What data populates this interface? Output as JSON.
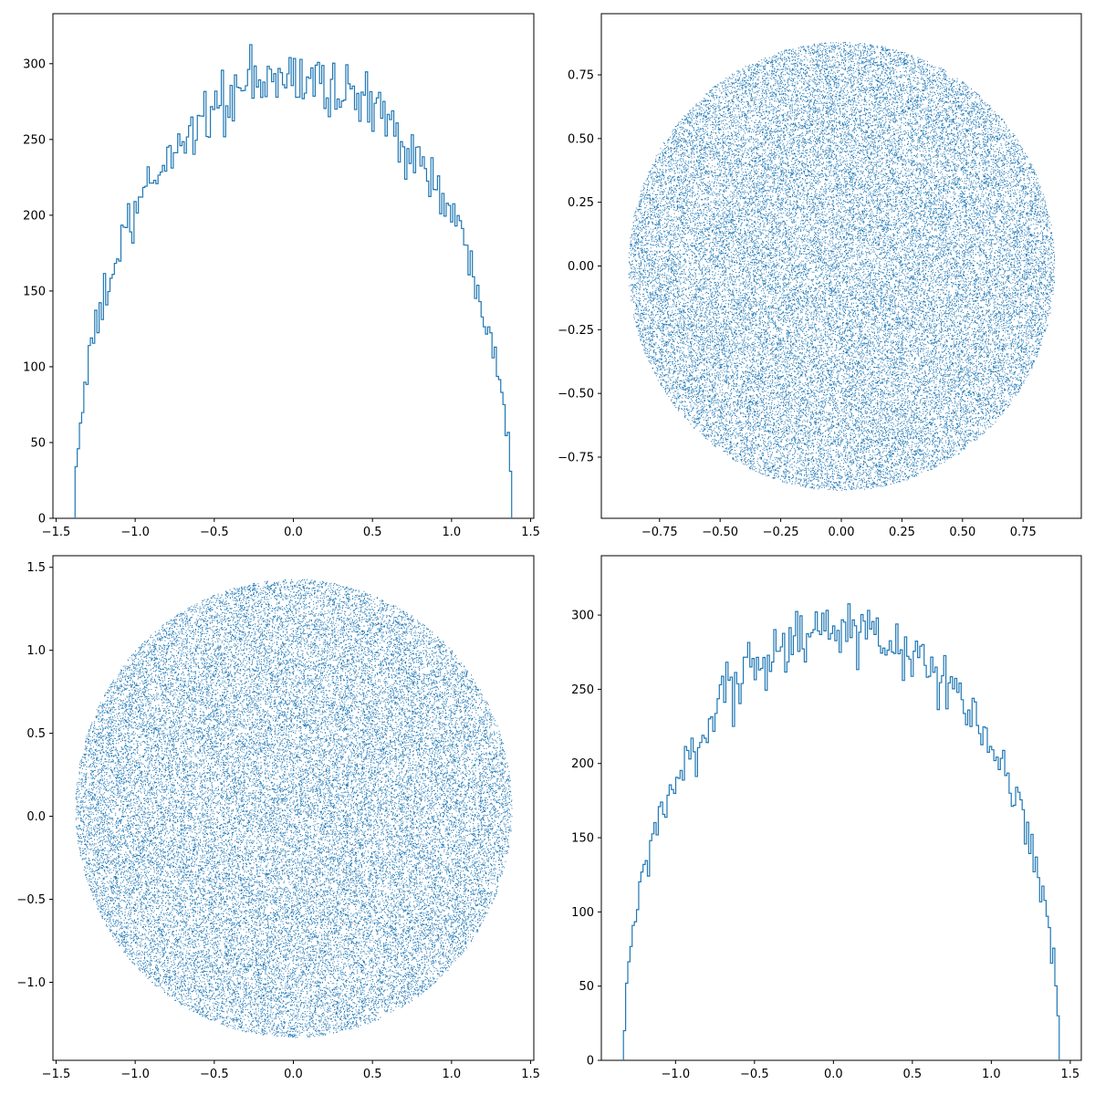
{
  "figure": {
    "background": "#ffffff",
    "series_color": "#1f77b4"
  },
  "chart_data": [
    {
      "type": "histogram",
      "histtype": "step",
      "title": "",
      "xlabel": "",
      "ylabel": "",
      "xlim": [
        -1.52,
        1.52
      ],
      "ylim": [
        0,
        333
      ],
      "xticks": [
        -1.5,
        -1.0,
        -0.5,
        0.0,
        0.5,
        1.0,
        1.5
      ],
      "xtick_labels": [
        "−1.5",
        "−1.0",
        "−0.5",
        "0.0",
        "0.5",
        "1.0",
        "1.5"
      ],
      "yticks": [
        0,
        50,
        100,
        150,
        200,
        250,
        300
      ],
      "ytick_labels": [
        "0",
        "50",
        "100",
        "150",
        "200",
        "250",
        "300"
      ],
      "grid": false,
      "bin_range": [
        -1.38,
        1.38
      ],
      "bin_count": 200,
      "envelope_peak": 290,
      "envelope_peak_x": -0.05,
      "noise_amplitude": 22,
      "x_noted": [
        -1.37,
        -1.2,
        -1.0,
        -0.8,
        -0.5,
        -0.3,
        -0.1,
        0.0,
        0.2,
        0.4,
        0.6,
        0.8,
        1.0,
        1.2,
        1.37
      ],
      "y_noted": [
        34,
        150,
        215,
        255,
        265,
        290,
        320,
        290,
        285,
        290,
        275,
        245,
        205,
        140,
        31
      ],
      "color": "#1f77b4"
    },
    {
      "type": "scatter",
      "marker": "pixel",
      "title": "",
      "xlabel": "",
      "ylabel": "",
      "xlim": [
        -0.99,
        0.99
      ],
      "ylim": [
        -0.99,
        0.99
      ],
      "xticks": [
        -0.75,
        -0.5,
        -0.25,
        0.0,
        0.25,
        0.5,
        0.75
      ],
      "xtick_labels": [
        "−0.75",
        "−0.50",
        "−0.25",
        "0.00",
        "0.25",
        "0.50",
        "0.75"
      ],
      "yticks": [
        -0.75,
        -0.5,
        -0.25,
        0.0,
        0.25,
        0.5,
        0.75
      ],
      "ytick_labels": [
        "−0.75",
        "−0.50",
        "−0.25",
        "0.00",
        "0.25",
        "0.50",
        "0.75"
      ],
      "grid": false,
      "distribution": "uniform disk",
      "center": [
        0.0,
        0.0
      ],
      "radius": 0.88,
      "point_count": 40000,
      "color": "#1f77b4"
    },
    {
      "type": "scatter",
      "marker": "pixel",
      "title": "",
      "xlabel": "",
      "ylabel": "",
      "xlim": [
        -1.52,
        1.52
      ],
      "ylim": [
        -1.47,
        1.57
      ],
      "xticks": [
        -1.5,
        -1.0,
        -0.5,
        0.0,
        0.5,
        1.0,
        1.5
      ],
      "xtick_labels": [
        "−1.5",
        "−1.0",
        "−0.5",
        "0.0",
        "0.5",
        "1.0",
        "1.5"
      ],
      "yticks": [
        -1.0,
        -0.5,
        0.0,
        0.5,
        1.0,
        1.5
      ],
      "ytick_labels": [
        "−1.0",
        "−0.5",
        "0.0",
        "0.5",
        "1.0",
        "1.5"
      ],
      "grid": false,
      "distribution": "uniform disk",
      "center": [
        0.0,
        0.05
      ],
      "radius": 1.38,
      "point_count": 40000,
      "color": "#1f77b4"
    },
    {
      "type": "histogram",
      "histtype": "step",
      "title": "",
      "xlabel": "",
      "ylabel": "",
      "xlim": [
        -1.47,
        1.57
      ],
      "ylim": [
        0,
        340
      ],
      "xticks": [
        -1.0,
        -0.5,
        0.0,
        0.5,
        1.0,
        1.5
      ],
      "xtick_labels": [
        "−1.0",
        "−0.5",
        "0.0",
        "0.5",
        "1.0",
        "1.5"
      ],
      "yticks": [
        0,
        50,
        100,
        150,
        200,
        250,
        300
      ],
      "ytick_labels": [
        "0",
        "50",
        "100",
        "150",
        "200",
        "250",
        "300"
      ],
      "grid": false,
      "bin_range": [
        -1.33,
        1.43
      ],
      "bin_count": 200,
      "envelope_peak": 290,
      "envelope_peak_x": 0.05,
      "noise_amplitude": 22,
      "x_noted": [
        -1.32,
        -1.2,
        -1.0,
        -0.8,
        -0.5,
        -0.3,
        0.0,
        0.05,
        0.3,
        0.5,
        0.8,
        1.0,
        1.2,
        1.42
      ],
      "y_noted": [
        20,
        105,
        200,
        250,
        290,
        295,
        325,
        330,
        300,
        280,
        250,
        210,
        140,
        30
      ],
      "color": "#1f77b4"
    }
  ]
}
